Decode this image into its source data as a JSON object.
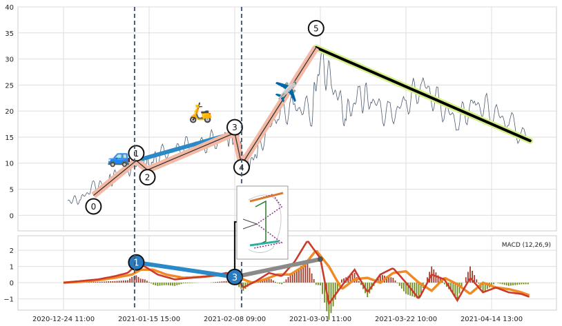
{
  "chart_data": [
    {
      "type": "line",
      "title": "",
      "xlabel": "",
      "ylabel": "",
      "ylim": [
        -3,
        40
      ],
      "yticks": [
        0,
        5,
        10,
        15,
        20,
        25,
        30,
        35,
        40
      ],
      "grid": true,
      "x_ticks": [
        "2020-12-24 11:00",
        "2021-01-15 15:00",
        "2021-02-08 09:00",
        "2021-03-01 11:00",
        "2021-03-22 10:00",
        "2021-04-14 13:00"
      ],
      "x_tick_index": [
        0,
        1,
        2,
        3,
        4,
        5
      ],
      "vertical_markers_index": [
        0.83,
        2.08
      ],
      "price_series": {
        "index": [
          0.05,
          0.2,
          0.35,
          0.5,
          0.6,
          0.75,
          0.9,
          1.0,
          1.1,
          1.3,
          1.5,
          1.7,
          1.9,
          2.0,
          2.04,
          2.1,
          2.2,
          2.3,
          2.5,
          2.7,
          2.9,
          3.0,
          3.15,
          3.3,
          3.45,
          3.6,
          3.8,
          4.0,
          4.2,
          4.4,
          4.6,
          4.8,
          5.0,
          5.2,
          5.45
        ],
        "values": [
          2.8,
          3.0,
          5.5,
          6.0,
          7.5,
          9.0,
          10.5,
          9.5,
          11.5,
          12.5,
          13.5,
          14.0,
          15.0,
          15.5,
          15.5,
          11.0,
          10.0,
          14.0,
          19.5,
          21.0,
          20.0,
          30.0,
          25.0,
          19.0,
          23.0,
          22.0,
          19.0,
          21.5,
          25.0,
          21.0,
          18.0,
          21.5,
          20.0,
          18.0,
          14.0
        ]
      },
      "wave_points": [
        {
          "label": "0",
          "index": 0.35,
          "value": 3.8,
          "label_value": 1.7
        },
        {
          "label": "1",
          "index": 0.85,
          "value": 10.5,
          "label_value": 11.9
        },
        {
          "label": "2",
          "index": 0.98,
          "value": 8.7,
          "label_value": 7.3
        },
        {
          "label": "3",
          "index": 2.0,
          "value": 15.8,
          "label_value": 16.9
        },
        {
          "label": "4",
          "index": 2.08,
          "value": 9.7,
          "label_value": 9.2
        },
        {
          "label": "5",
          "index": 2.95,
          "value": 32.2,
          "label_value": 35.9
        }
      ],
      "trend_lines": [
        {
          "from": [
            0.85,
            10.5
          ],
          "to": [
            2.0,
            15.8
          ],
          "color": "#2a8ac8"
        },
        {
          "from": [
            2.95,
            32.2
          ],
          "to": [
            5.45,
            14.3
          ],
          "color": "#000000",
          "halo": "#d4f08a"
        }
      ],
      "emoji": [
        {
          "char": "🚙",
          "index": 0.65,
          "value": 10.0
        },
        {
          "char": "🛵",
          "index": 1.6,
          "value": 18.5
        },
        {
          "char": "✈️",
          "index": 2.6,
          "value": 22.5
        }
      ]
    },
    {
      "type": "line",
      "title": "",
      "ylim": [
        -1.7,
        2.9
      ],
      "yticks": [
        -1,
        0,
        1,
        2
      ],
      "legend": {
        "label": "MACD (12,26,9)",
        "placement": "top-right"
      },
      "macd": {
        "index": [
          0.0,
          0.2,
          0.4,
          0.6,
          0.75,
          0.85,
          0.95,
          1.1,
          1.3,
          1.5,
          1.7,
          1.9,
          2.0,
          2.1,
          2.25,
          2.4,
          2.55,
          2.7,
          2.85,
          3.0,
          3.1,
          3.25,
          3.4,
          3.55,
          3.7,
          3.85,
          4.0,
          4.15,
          4.3,
          4.45,
          4.6,
          4.75,
          4.9,
          5.05,
          5.2,
          5.35,
          5.45
        ],
        "values": [
          0.0,
          0.1,
          0.2,
          0.4,
          0.6,
          1.1,
          1.0,
          0.5,
          0.2,
          0.3,
          0.4,
          0.6,
          0.5,
          -0.3,
          0.1,
          0.6,
          0.4,
          1.3,
          2.6,
          1.5,
          -1.3,
          -0.2,
          0.8,
          -0.6,
          0.5,
          0.9,
          0.0,
          -1.0,
          0.5,
          0.2,
          -1.1,
          0.3,
          -0.6,
          -0.3,
          -0.6,
          -0.7,
          -0.9
        ]
      },
      "signal": {
        "index": [
          0.0,
          0.2,
          0.4,
          0.6,
          0.8,
          0.9,
          1.05,
          1.2,
          1.4,
          1.6,
          1.8,
          2.0,
          2.1,
          2.2,
          2.35,
          2.5,
          2.65,
          2.8,
          2.95,
          3.1,
          3.25,
          3.4,
          3.55,
          3.7,
          3.85,
          4.0,
          4.15,
          4.3,
          4.45,
          4.6,
          4.75,
          4.9,
          5.05,
          5.2,
          5.35,
          5.45
        ],
        "values": [
          0.0,
          0.05,
          0.15,
          0.3,
          0.5,
          0.8,
          0.8,
          0.5,
          0.3,
          0.35,
          0.45,
          0.55,
          0.2,
          0.0,
          0.2,
          0.5,
          0.5,
          1.0,
          2.0,
          1.0,
          -0.4,
          0.2,
          0.3,
          0.0,
          0.6,
          0.7,
          0.0,
          -0.5,
          0.3,
          -0.1,
          -0.7,
          0.0,
          -0.3,
          -0.4,
          -0.6,
          -0.8
        ]
      },
      "pivots": [
        {
          "label": "1",
          "index": 0.85,
          "value": 1.25
        },
        {
          "label": "3",
          "index": 2.0,
          "value": 0.35
        }
      ],
      "pivot_links": [
        {
          "from": [
            0.85,
            1.25
          ],
          "to": [
            2.0,
            0.35
          ],
          "color": "#2a8ac8"
        },
        {
          "from": [
            2.0,
            0.35
          ],
          "to": [
            3.0,
            1.45
          ],
          "color": "#8a8a8a"
        }
      ]
    }
  ],
  "icons": {
    "inset_diagram": "harmonic-pattern-icon"
  }
}
